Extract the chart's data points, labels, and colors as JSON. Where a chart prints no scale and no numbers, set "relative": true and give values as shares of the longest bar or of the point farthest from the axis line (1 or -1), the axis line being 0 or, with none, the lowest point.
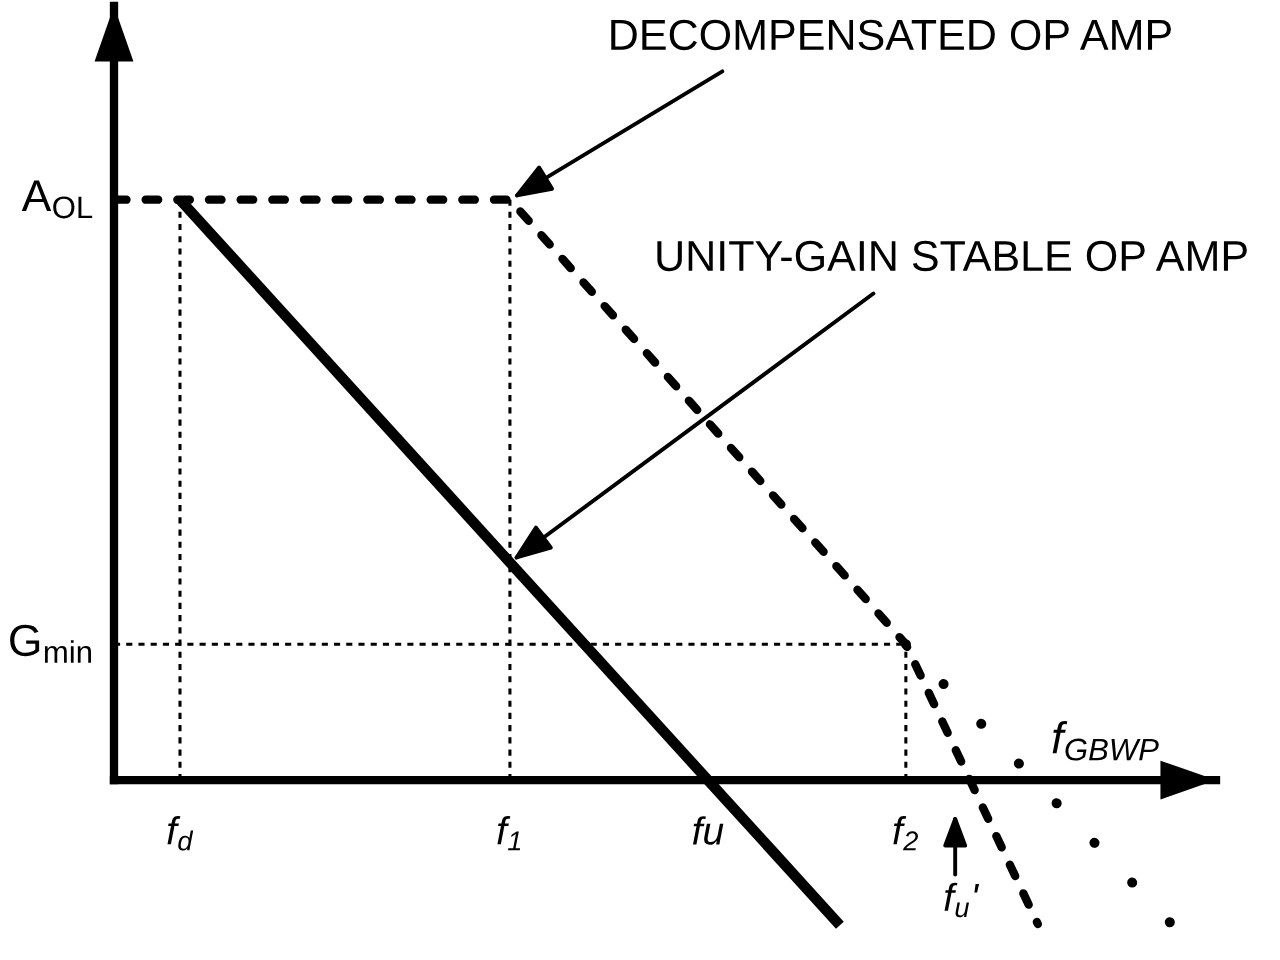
{
  "chart_data": {
    "type": "line",
    "relative": true,
    "categories": [
      null,
      "f$_{d}$",
      null,
      null,
      null,
      null,
      "f$_{1}$",
      null,
      null,
      "fu",
      null,
      null,
      "f$_{2}$",
      "f$_{u}$'",
      null,
      null,
      null
    ],
    "series": [
      {
        "color": "#000000",
        "line_style": "solid",
        "values": [
          null,
          1,
          0.875,
          0.75,
          0.625,
          0.5,
          0.375,
          0.25,
          0.125,
          0,
          -0.125,
          -0.25,
          null,
          null,
          null,
          null,
          null
        ]
      },
      {
        "color": "#000000",
        "line_style": "dashed",
        "values": [
          1,
          1,
          1,
          1,
          1,
          1,
          1,
          0.872,
          0.745,
          0.617,
          0.489,
          0.362,
          0.234,
          -0.007,
          -0.248,
          null,
          null
        ]
      },
      {
        "color": "#000000",
        "line_style": "dotted",
        "values": [
          null,
          null,
          null,
          null,
          null,
          null,
          null,
          null,
          null,
          null,
          null,
          null,
          0.234,
          0.114,
          -0.006,
          -0.125,
          -0.245
        ]
      }
    ],
    "ref_lines": [
      {
        "axis": "y",
        "value": 0.234,
        "label": "G$_{min}$",
        "line_style": "dotted"
      },
      {
        "axis": "x",
        "value": "f$_{d}$",
        "line_style": "dotted"
      },
      {
        "axis": "x",
        "value": "f$_{1}$",
        "line_style": "dotted"
      },
      {
        "axis": "x",
        "value": "f$_{2}$",
        "line_style": "dotted"
      }
    ],
    "annotations": [
      "A$_{OL}$",
      {
        "text": "DECOMPENSATED OP AMP",
        "x": "f$_{1}$",
        "y": 1
      },
      {
        "text": "UNITY-GAIN STABLE OP AMP",
        "x": "f$_{1}$",
        "y": 0.375
      },
      "f$_{GBWP}$"
    ]
  }
}
